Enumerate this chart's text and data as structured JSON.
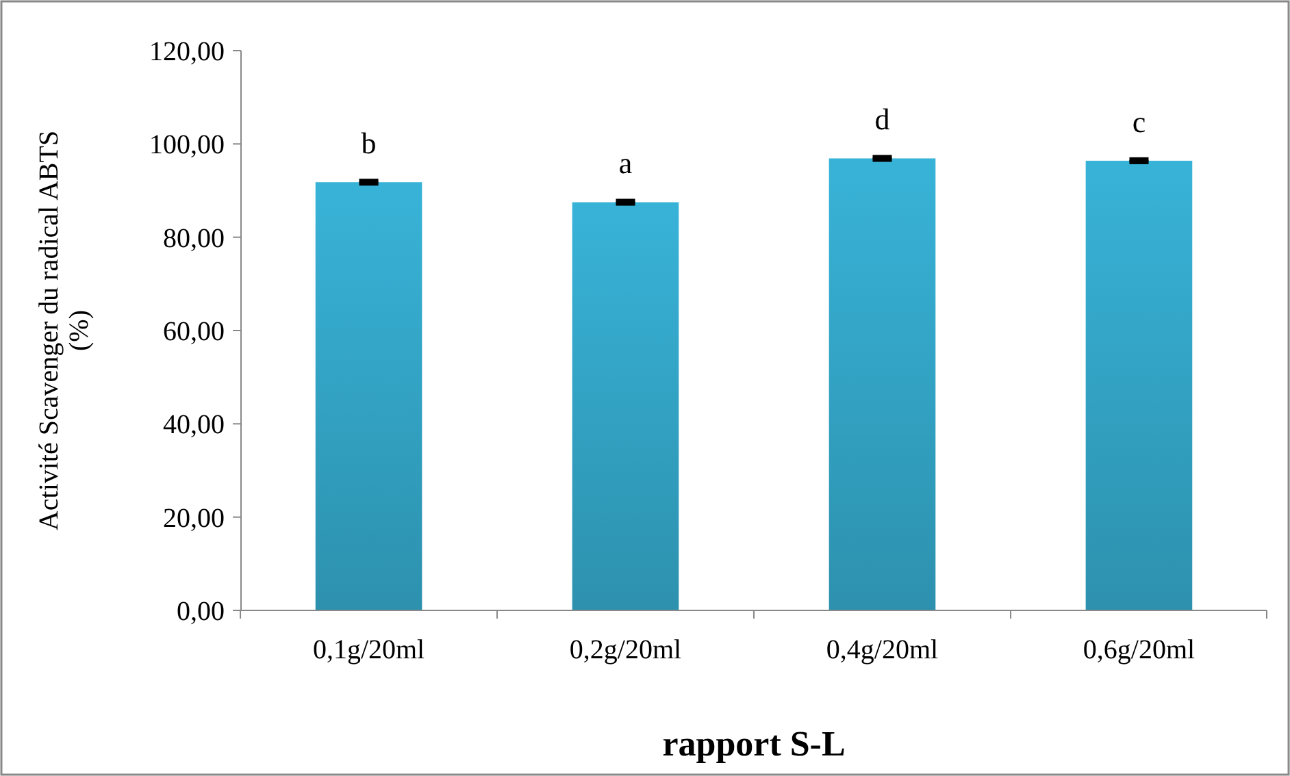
{
  "chart_data": {
    "type": "bar",
    "xlabel": "rapport S-L",
    "ylabel": "Activité Scavenger du radical ABTS (%)",
    "categories": [
      "0,1g/20ml",
      "0,2g/20ml",
      "0,4g/20ml",
      "0,6g/20ml"
    ],
    "values": [
      91.8,
      87.5,
      96.9,
      96.4
    ],
    "errors": [
      0.3,
      0.3,
      0.3,
      0.3
    ],
    "color": "#38b3d8",
    "ylim": [
      0,
      120
    ],
    "yticks": [
      {
        "value": 0,
        "label": "0,00"
      },
      {
        "value": 20,
        "label": "20,00"
      },
      {
        "value": 40,
        "label": "40,00"
      },
      {
        "value": 60,
        "label": "60,00"
      },
      {
        "value": 80,
        "label": "80,00"
      },
      {
        "value": 100,
        "label": "100,00"
      },
      {
        "value": 120,
        "label": "120,00"
      }
    ],
    "grid": false,
    "annotations": [
      {
        "text": "b",
        "x": "0,1g/20ml",
        "y": 92.1
      },
      {
        "text": "a",
        "x": "0,2g/20ml",
        "y": 87.8
      },
      {
        "text": "d",
        "x": "0,4g/20ml",
        "y": 97.2
      },
      {
        "text": "c",
        "x": "0,6g/20ml",
        "y": 96.7
      }
    ]
  }
}
